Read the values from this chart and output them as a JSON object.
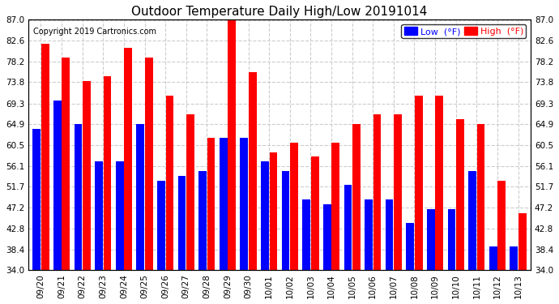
{
  "title": "Outdoor Temperature Daily High/Low 20191014",
  "copyright": "Copyright 2019 Cartronics.com",
  "background_color": "#ffffff",
  "plot_bg_color": "#ffffff",
  "grid_color": "#cccccc",
  "bar_color_low": "#0000ff",
  "bar_color_high": "#ff0000",
  "dates": [
    "09/20",
    "09/21",
    "09/22",
    "09/23",
    "09/24",
    "09/25",
    "09/26",
    "09/27",
    "09/28",
    "09/29",
    "09/30",
    "10/01",
    "10/02",
    "10/03",
    "10/04",
    "10/05",
    "10/06",
    "10/07",
    "10/08",
    "10/09",
    "10/10",
    "10/11",
    "10/12",
    "10/13"
  ],
  "lows": [
    64.0,
    70.0,
    65.0,
    57.0,
    57.0,
    65.0,
    53.0,
    54.0,
    55.0,
    62.0,
    62.0,
    57.0,
    55.0,
    49.0,
    48.0,
    52.0,
    49.0,
    49.0,
    44.0,
    47.0,
    47.0,
    55.0,
    39.0,
    39.0
  ],
  "highs": [
    82.0,
    79.0,
    74.0,
    75.0,
    81.0,
    79.0,
    71.0,
    67.0,
    62.0,
    87.0,
    76.0,
    59.0,
    61.0,
    58.0,
    61.0,
    65.0,
    67.0,
    67.0,
    71.0,
    71.0,
    66.0,
    65.0,
    53.0,
    46.0
  ],
  "ymin": 34.0,
  "ymax": 87.0,
  "yticks": [
    34.0,
    38.4,
    42.8,
    47.2,
    51.7,
    56.1,
    60.5,
    64.9,
    69.3,
    73.8,
    78.2,
    82.6,
    87.0
  ],
  "legend_low_label": "Low  (°F)",
  "legend_high_label": "High  (°F)"
}
